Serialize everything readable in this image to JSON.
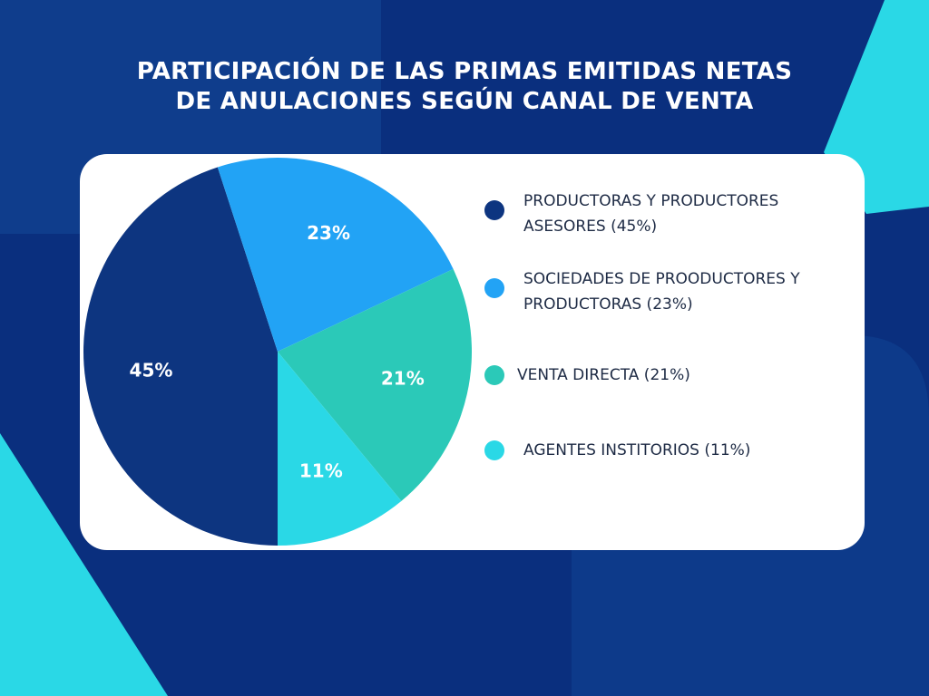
{
  "chart_data": {
    "type": "pie",
    "title": [
      "PARTICIPACIÓN DE LAS PRIMAS EMITIDAS NETAS",
      "DE ANULACIONES SEGÚN CANAL DE VENTA"
    ],
    "categories": [
      "PRODUCTORAS Y PRODUCTORES ASESORES (45%)",
      "SOCIEDADES DE PROODUCTORES Y PRODUCTORAS (23%)",
      "VENTA DIRECTA (21%)",
      "AGENTES INSTITORIOS (11%)"
    ],
    "values": [
      45,
      23,
      21,
      11
    ],
    "value_labels": [
      "45%",
      "23%",
      "21%",
      "11%"
    ],
    "colors": [
      "#0d3580",
      "#22a3f5",
      "#2bc9b8",
      "#2ad8e6"
    ]
  }
}
